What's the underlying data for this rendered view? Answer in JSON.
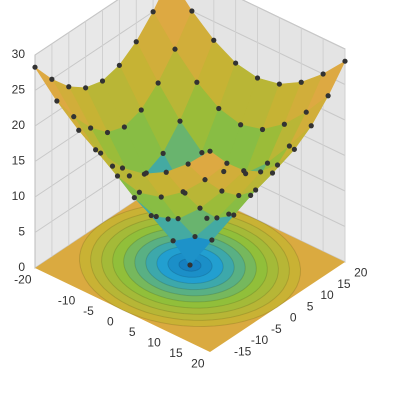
{
  "chart_data": {
    "type": "surface",
    "x": [
      -20,
      -15,
      -10,
      -5,
      0,
      5,
      10,
      15,
      20
    ],
    "y": [
      -20,
      -15,
      -10,
      -5,
      0,
      5,
      10,
      15,
      20
    ],
    "z": [
      [
        28.28,
        25,
        22.36,
        20.62,
        20,
        20.62,
        22.36,
        25,
        28.28
      ],
      [
        25,
        21.21,
        18.03,
        15.81,
        15,
        15.81,
        18.03,
        21.21,
        25
      ],
      [
        22.36,
        18.03,
        14.14,
        11.18,
        10,
        11.18,
        14.14,
        18.03,
        22.36
      ],
      [
        20.62,
        15.81,
        11.18,
        7.07,
        5,
        7.07,
        11.18,
        15.81,
        20.62
      ],
      [
        20,
        15,
        10,
        5,
        0,
        5,
        10,
        15,
        20
      ],
      [
        20.62,
        15.81,
        11.18,
        7.07,
        5,
        7.07,
        11.18,
        15.81,
        20.62
      ],
      [
        22.36,
        18.03,
        14.14,
        11.18,
        10,
        11.18,
        14.14,
        18.03,
        22.36
      ],
      [
        25,
        21.21,
        18.03,
        15.81,
        15,
        15.81,
        18.03,
        21.21,
        25
      ],
      [
        28.28,
        25,
        22.36,
        20.62,
        20,
        20.62,
        22.36,
        25,
        28.28
      ]
    ],
    "xlim": [
      -20,
      20
    ],
    "ylim": [
      -20,
      20
    ],
    "zlim": [
      0,
      30
    ],
    "xticks": [
      -20,
      -10,
      -5,
      0,
      5,
      10,
      15,
      20
    ],
    "yticks": [
      -15,
      -10,
      -5,
      0,
      5,
      10,
      15,
      20
    ],
    "zticks": [
      0,
      5,
      10,
      15,
      20,
      25,
      30
    ],
    "grid": true
  }
}
